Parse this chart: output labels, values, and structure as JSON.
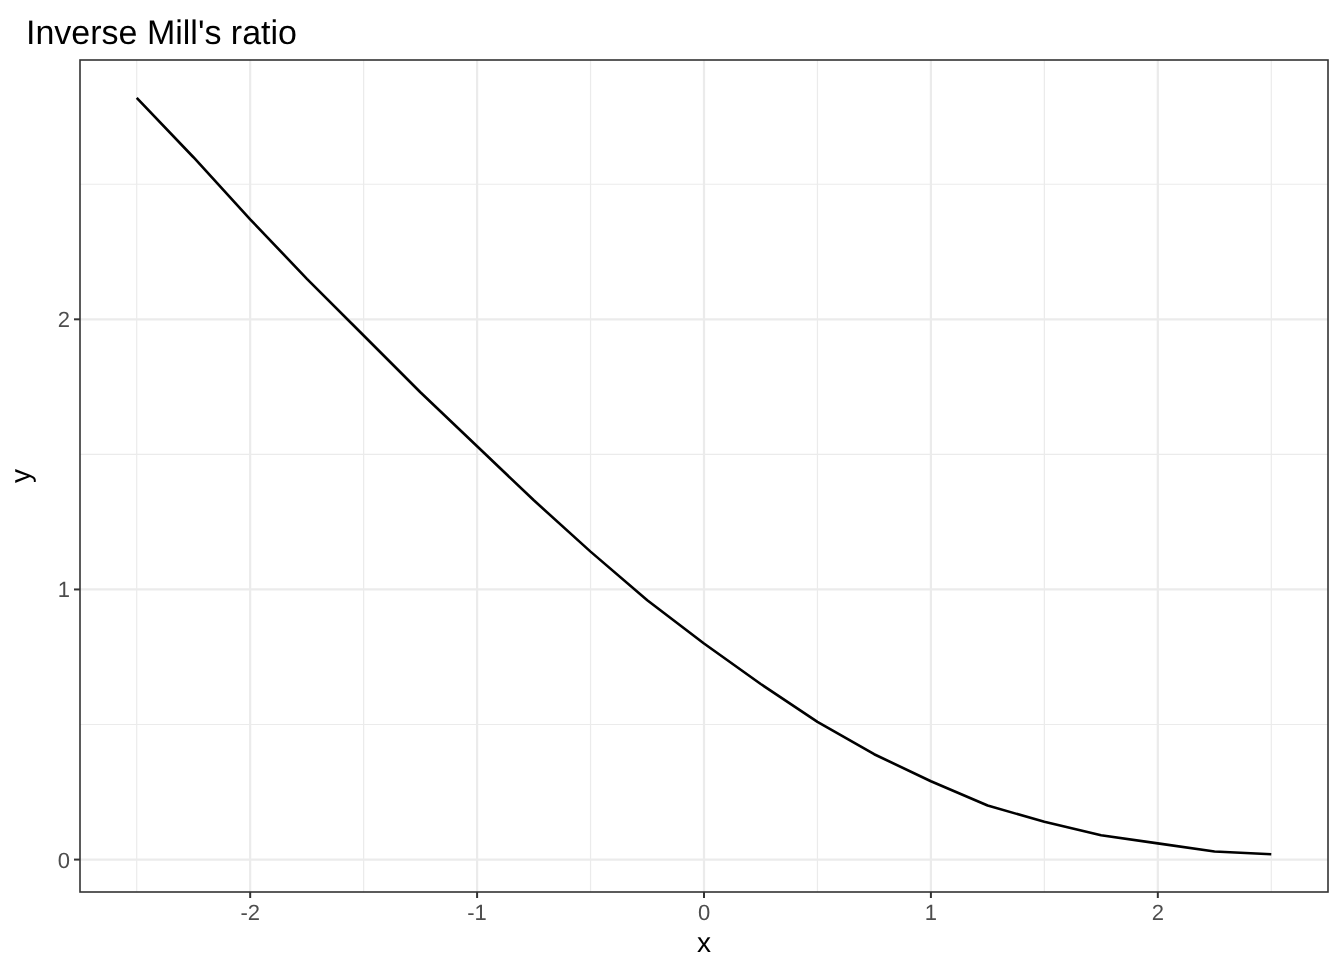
{
  "chart_data": {
    "type": "line",
    "title": "Inverse Mill's ratio",
    "xlabel": "x",
    "ylabel": "y",
    "x": [
      -2.5,
      -2.25,
      -2,
      -1.75,
      -1.5,
      -1.25,
      -1,
      -0.75,
      -0.5,
      -0.25,
      0,
      0.25,
      0.5,
      0.75,
      1,
      1.25,
      1.5,
      1.75,
      2,
      2.25,
      2.5
    ],
    "series": [
      {
        "color": "#000000",
        "values": [
          2.82,
          2.6,
          2.37,
          2.15,
          1.94,
          1.73,
          1.53,
          1.33,
          1.14,
          0.96,
          0.8,
          0.65,
          0.51,
          0.39,
          0.29,
          0.2,
          0.14,
          0.09,
          0.06,
          0.03,
          0.02
        ]
      }
    ],
    "xlim": [
      -2.75,
      2.75
    ],
    "ylim": [
      -0.12,
      2.96
    ],
    "xticks": [
      {
        "value": -2.5,
        "label": null
      },
      -2,
      {
        "value": -1.5,
        "label": null
      },
      -1,
      {
        "value": -0.5,
        "label": null
      },
      0,
      {
        "value": 0.5,
        "label": null
      },
      1,
      {
        "value": 1.5,
        "label": null
      },
      2,
      {
        "value": 2.5,
        "label": null
      }
    ],
    "yticks": [
      0,
      {
        "value": 0.5,
        "label": null
      },
      1,
      {
        "value": 1.5,
        "label": null
      },
      2,
      {
        "value": 2.5,
        "label": null
      }
    ],
    "grid": true,
    "line_style": "solid",
    "marker": "none"
  }
}
